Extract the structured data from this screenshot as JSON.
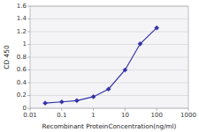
{
  "chart_data": {
    "type": "line",
    "x": [
      0.03,
      0.1,
      0.3,
      1.0,
      3.0,
      10.0,
      30.0,
      100.0
    ],
    "values": [
      0.08,
      0.1,
      0.12,
      0.18,
      0.3,
      0.6,
      1.01,
      1.26
    ],
    "color": "#3333aa",
    "marker": "diamond",
    "xlabel": "Recombinant ProteinConcentration(ng/ml)",
    "ylabel": "CD 450",
    "log": "x",
    "xlim": [
      0.01,
      1000
    ],
    "ylim": [
      0,
      1.6
    ],
    "xticks": [
      0.01,
      0.1,
      1,
      10,
      100,
      1000
    ],
    "yticks": [
      0,
      0.2,
      0.4,
      0.6,
      0.8,
      1.0,
      1.2,
      1.4,
      1.6
    ],
    "grid": "y"
  }
}
